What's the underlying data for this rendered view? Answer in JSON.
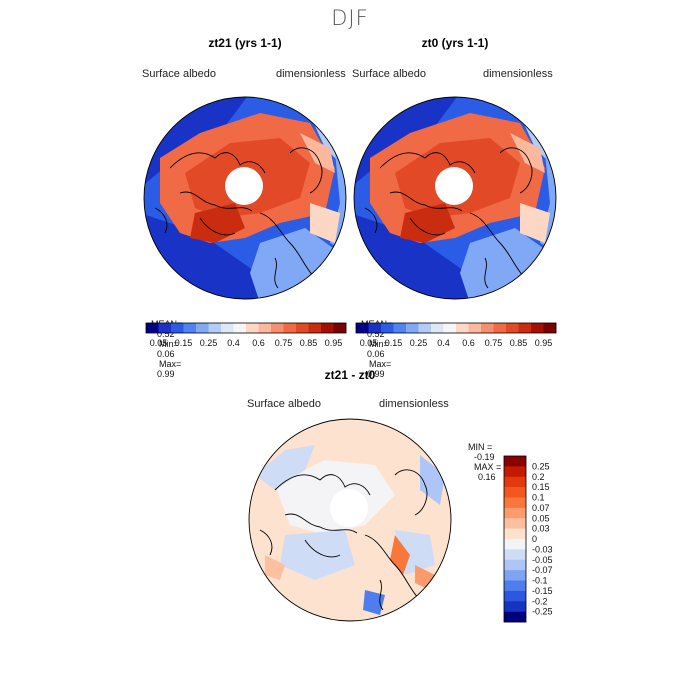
{
  "figure_title": "DJF",
  "panels": [
    {
      "title": "zt21 (yrs 1-1)",
      "variable": "Surface albedo",
      "units": "dimensionless",
      "stats": {
        "mean": "MEAN=",
        "mean_val": "0.52",
        "min": "Min=",
        "min_val": "0.06",
        "max": "Max=",
        "max_val": "0.99"
      }
    },
    {
      "title": "zt0 (yrs 1-1)",
      "variable": "Surface albedo",
      "units": "dimensionless",
      "stats": {
        "mean": "MEAN=",
        "mean_val": "0.52",
        "min": "Min=",
        "min_val": "0.06",
        "max": "Max=",
        "max_val": "0.99"
      }
    },
    {
      "title": "zt21 - zt0",
      "variable": "Surface albedo",
      "units": "dimensionless",
      "stats": {
        "min": "MIN =",
        "min_val": "-0.19",
        "max": "MAX =",
        "max_val": "0.16"
      }
    }
  ],
  "colorbars": {
    "absolute": {
      "labels": [
        "0.05",
        "0.15",
        "0.25",
        "0.4",
        "0.6",
        "0.75",
        "0.85",
        "0.95"
      ],
      "colors": [
        "#00008b",
        "#1a33c7",
        "#2a5ce6",
        "#4d84f2",
        "#80a8f5",
        "#b3ccf7",
        "#dde8f6",
        "#f7f7f7",
        "#fcd8c4",
        "#fbb89d",
        "#f78e6e",
        "#f06a45",
        "#e24a27",
        "#c92c0f",
        "#a50f00",
        "#7a0000"
      ]
    },
    "difference": {
      "labels": [
        "0.25",
        "0.2",
        "0.15",
        "0.1",
        "0.07",
        "0.05",
        "0.03",
        "0",
        "-0.03",
        "-0.05",
        "-0.07",
        "-0.1",
        "-0.15",
        "-0.2",
        "-0.25"
      ],
      "colors": [
        "#8b0000",
        "#c41a00",
        "#e13a0e",
        "#f2571f",
        "#f8773a",
        "#fb9a6a",
        "#fcbfa0",
        "#fde2cf",
        "#f4f4f6",
        "#cfdcf6",
        "#aec6f7",
        "#7fa4f2",
        "#4f7eec",
        "#2c57e0",
        "#1634c2",
        "#00007f"
      ]
    }
  },
  "chart_data": [
    {
      "type": "heatmap",
      "title": "zt21 (yrs 1-1)",
      "projection": "north polar stereographic",
      "variable": "Surface albedo",
      "units": "dimensionless",
      "mean": 0.52,
      "min": 0.06,
      "max": 0.99,
      "levels": [
        0.05,
        0.15,
        0.25,
        0.4,
        0.6,
        0.75,
        0.85,
        0.95
      ],
      "grid": false
    },
    {
      "type": "heatmap",
      "title": "zt0 (yrs 1-1)",
      "projection": "north polar stereographic",
      "variable": "Surface albedo",
      "units": "dimensionless",
      "mean": 0.52,
      "min": 0.06,
      "max": 0.99,
      "levels": [
        0.05,
        0.15,
        0.25,
        0.4,
        0.6,
        0.75,
        0.85,
        0.95
      ],
      "grid": false
    },
    {
      "type": "heatmap",
      "title": "zt21 - zt0",
      "projection": "north polar stereographic",
      "variable": "Surface albedo",
      "units": "dimensionless",
      "min": -0.19,
      "max": 0.16,
      "levels": [
        0.25,
        0.2,
        0.15,
        0.1,
        0.07,
        0.05,
        0.03,
        0,
        -0.03,
        -0.05,
        -0.07,
        -0.1,
        -0.15,
        -0.2,
        -0.25
      ],
      "grid": false
    }
  ]
}
